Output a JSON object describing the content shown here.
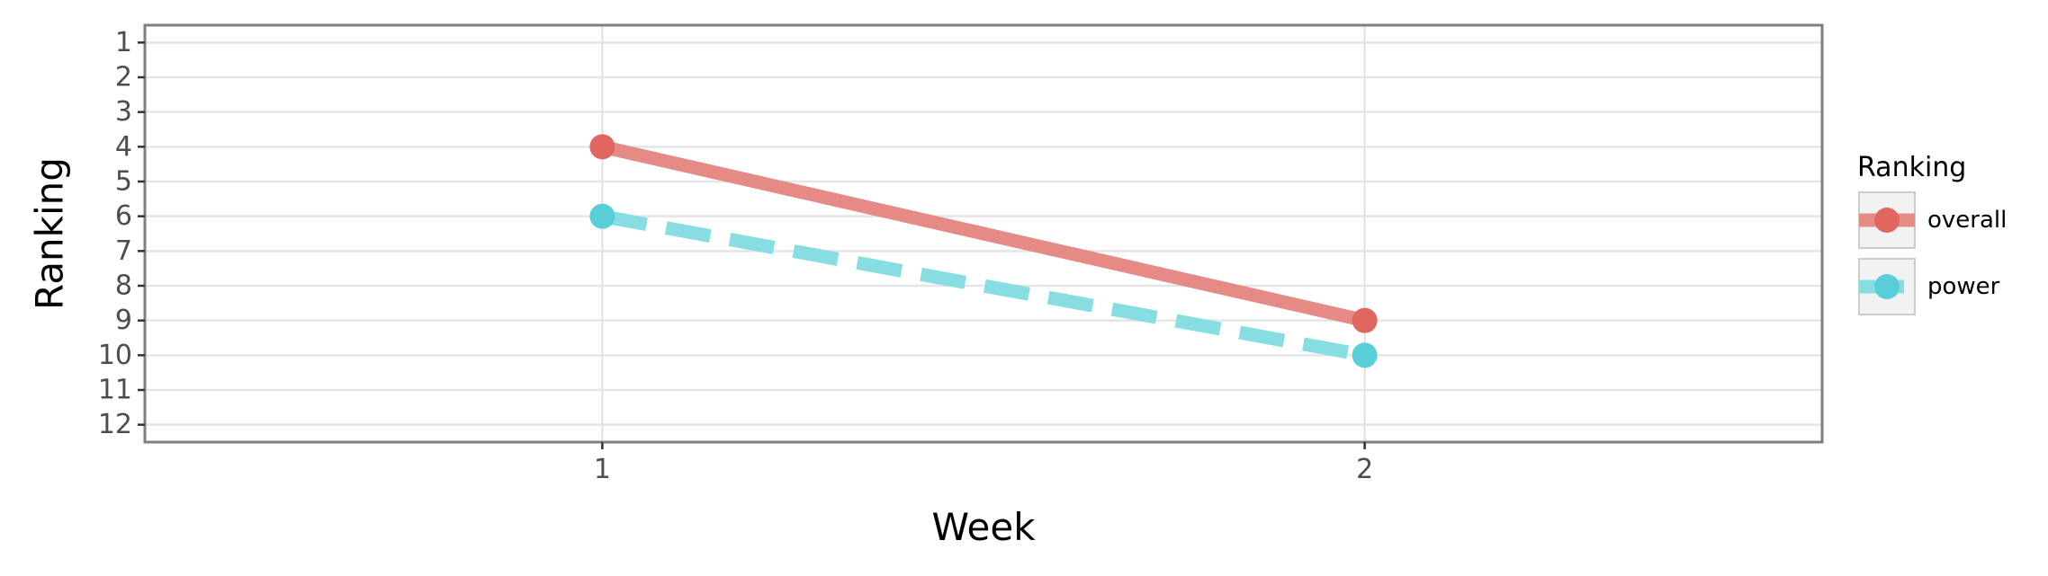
{
  "chart_data": {
    "type": "line",
    "xlabel": "Week",
    "ylabel": "Ranking",
    "x": [
      1,
      2
    ],
    "x_ticks": [
      "1",
      "2"
    ],
    "xlim": [
      0.4,
      2.6
    ],
    "ylim": [
      12.5,
      0.5
    ],
    "y_reversed": true,
    "y_ticks": [
      "1",
      "2",
      "3",
      "4",
      "5",
      "6",
      "7",
      "8",
      "9",
      "10",
      "11",
      "12"
    ],
    "grid": true,
    "legend": {
      "title": "Ranking",
      "position": "right"
    },
    "series": [
      {
        "name": "overall",
        "values": [
          4,
          9
        ],
        "color": "#e06660",
        "line_color": "#e68a86",
        "linestyle": "solid"
      },
      {
        "name": "power",
        "values": [
          6,
          10
        ],
        "color": "#58cfd8",
        "line_color": "#88dde3",
        "linestyle": "dashed"
      }
    ]
  }
}
